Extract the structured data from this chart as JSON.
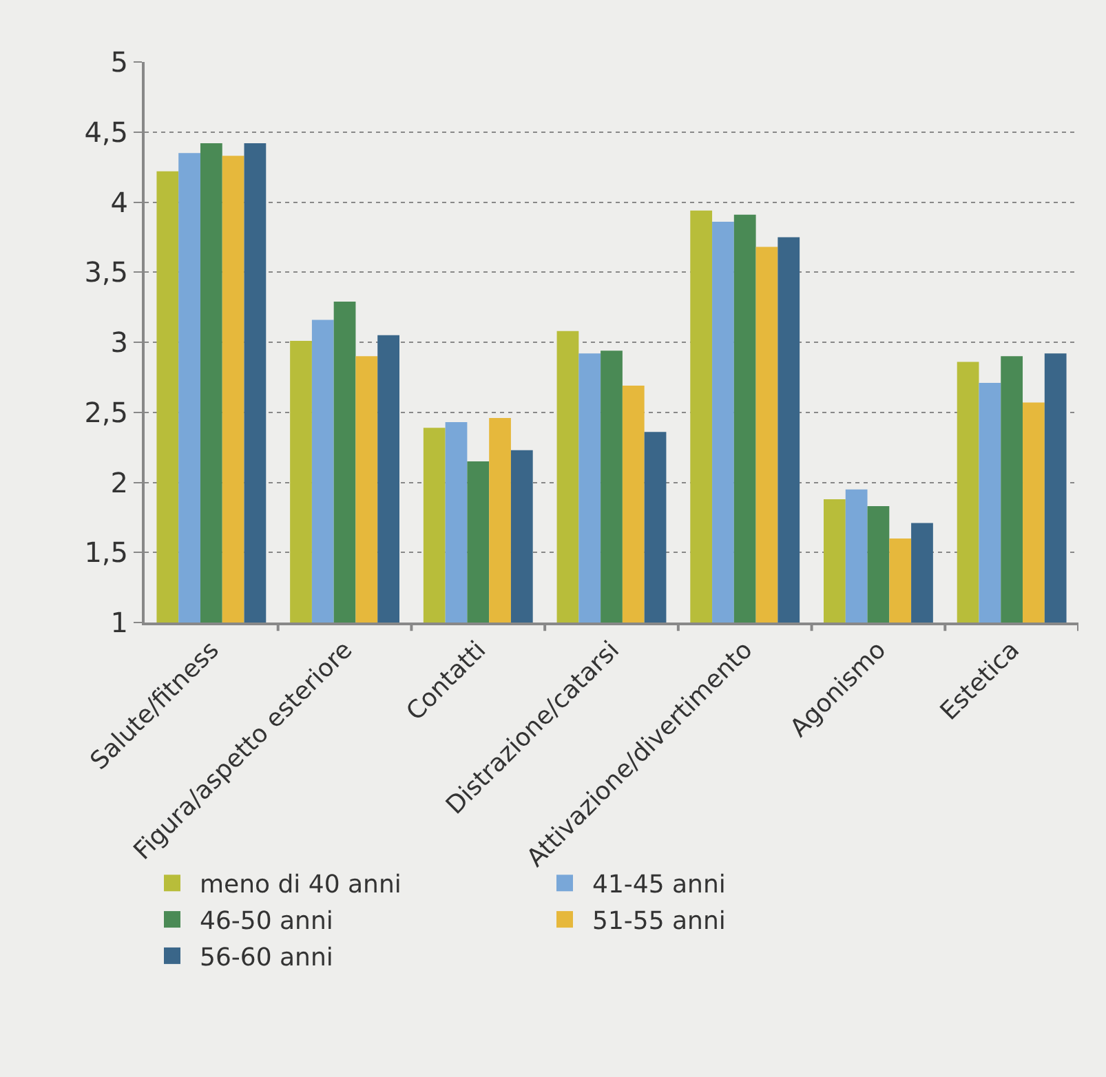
{
  "chart_data": {
    "type": "bar",
    "categories": [
      "Salute/fitness",
      "Figura/aspetto esteriore",
      "Contatti",
      "Distrazione/catarsi",
      "Attivazione/divertimento",
      "Agonismo",
      "Estetica"
    ],
    "series": [
      {
        "name": "meno di 40 anni",
        "color": "#b8bd3a",
        "values": [
          4.22,
          3.01,
          2.39,
          3.08,
          3.94,
          1.88,
          2.86
        ]
      },
      {
        "name": "41-45 anni",
        "color": "#79a7d8",
        "values": [
          4.35,
          3.16,
          2.43,
          2.92,
          3.86,
          1.95,
          2.71
        ]
      },
      {
        "name": "46-50 anni",
        "color": "#4a8a55",
        "values": [
          4.42,
          3.29,
          2.15,
          2.94,
          3.91,
          1.83,
          2.9
        ]
      },
      {
        "name": "51-55 anni",
        "color": "#e6b83c",
        "values": [
          4.33,
          2.9,
          2.46,
          2.69,
          3.68,
          1.6,
          2.57
        ]
      },
      {
        "name": "56-60 anni",
        "color": "#3a6689",
        "values": [
          4.42,
          3.05,
          2.23,
          2.36,
          3.75,
          1.71,
          2.92
        ]
      }
    ],
    "ylim": [
      1,
      5
    ],
    "yticks": [
      {
        "value": 1,
        "label": "1"
      },
      {
        "value": 1.5,
        "label": "1,5"
      },
      {
        "value": 2,
        "label": "2"
      },
      {
        "value": 2.5,
        "label": "2,5"
      },
      {
        "value": 3,
        "label": "3"
      },
      {
        "value": 3.5,
        "label": "3,5"
      },
      {
        "value": 4,
        "label": "4"
      },
      {
        "value": 4.5,
        "label": "4,5"
      },
      {
        "value": 5,
        "label": "5"
      }
    ],
    "grid": "y",
    "legend": "bottom"
  }
}
